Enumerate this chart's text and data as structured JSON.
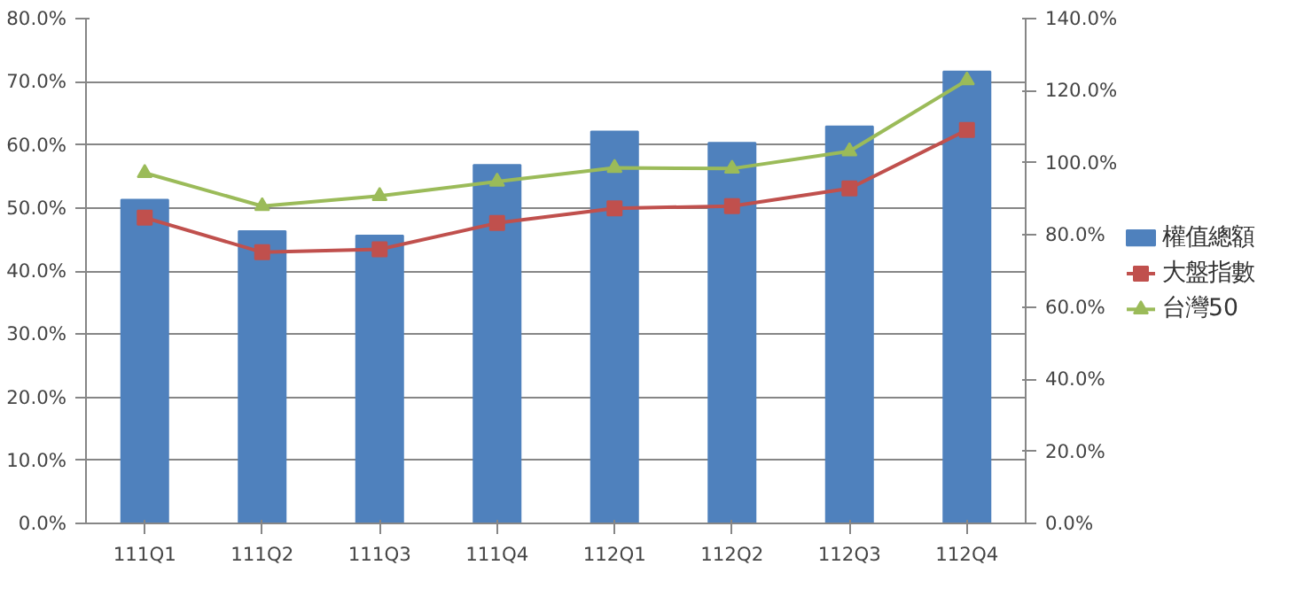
{
  "chart_data": {
    "type": "bar",
    "categories": [
      "111Q1",
      "111Q2",
      "111Q3",
      "111Q4",
      "112Q1",
      "112Q2",
      "112Q3",
      "112Q4"
    ],
    "series": [
      {
        "name": "權值總額",
        "color": "#4f81bd",
        "values": [
          51.3,
          46.3,
          45.6,
          56.8,
          62.1,
          60.3,
          62.9,
          71.6
        ]
      },
      {
        "name": "大盤指數",
        "type": "line",
        "axis": "y2",
        "marker": "square",
        "color": "#c0504d",
        "values": [
          84.8,
          75.2,
          76.0,
          83.3,
          87.4,
          88.0,
          92.9,
          109.1
        ]
      },
      {
        "name": "台灣50",
        "type": "line",
        "axis": "y2",
        "marker": "triangle",
        "color": "#9bbb59",
        "values": [
          97.2,
          88.0,
          90.8,
          94.8,
          98.6,
          98.4,
          103.2,
          122.9
        ]
      }
    ],
    "ylim": [
      0,
      80
    ],
    "yticks": [
      {
        "value": 0,
        "label": "0.0%"
      },
      {
        "value": 10,
        "label": "10.0%"
      },
      {
        "value": 20,
        "label": "20.0%"
      },
      {
        "value": 30,
        "label": "30.0%"
      },
      {
        "value": 40,
        "label": "40.0%"
      },
      {
        "value": 50,
        "label": "50.0%"
      },
      {
        "value": 60,
        "label": "60.0%"
      },
      {
        "value": 70,
        "label": "70.0%"
      },
      {
        "value": 80,
        "label": "80.0%"
      }
    ],
    "y2lim": [
      0,
      140
    ],
    "y2ticks": [
      {
        "value": 0,
        "label": "0.0%"
      },
      {
        "value": 20,
        "label": "20.0%"
      },
      {
        "value": 40,
        "label": "40.0%"
      },
      {
        "value": 60,
        "label": "60.0%"
      },
      {
        "value": 80,
        "label": "80.0%"
      },
      {
        "value": 100,
        "label": "100.0%"
      },
      {
        "value": 120,
        "label": "120.0%"
      },
      {
        "value": 140,
        "label": "140.0%"
      }
    ],
    "grid": "y",
    "legend": "right"
  }
}
